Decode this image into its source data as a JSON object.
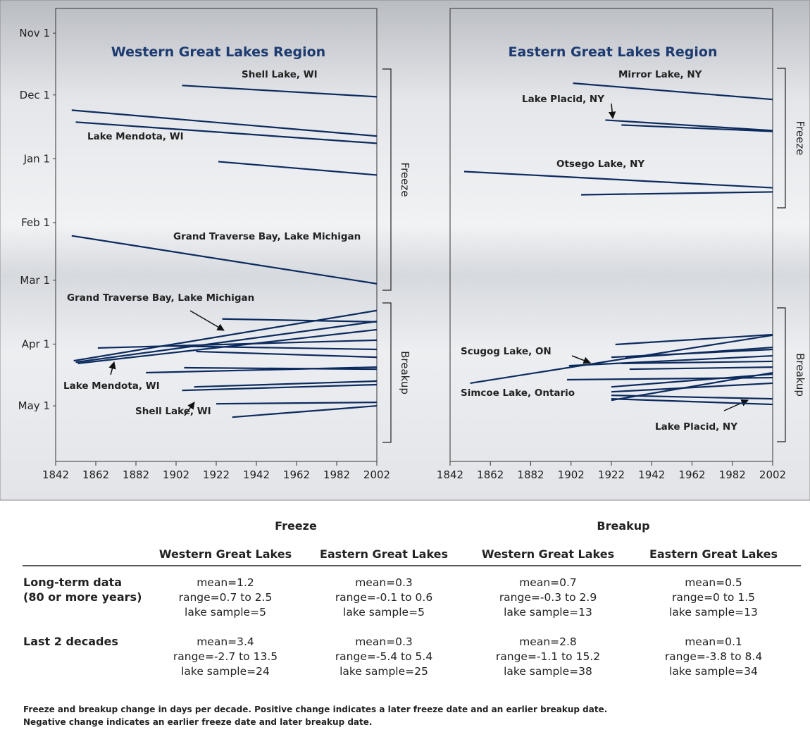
{
  "chart_data": [
    {
      "type": "line",
      "title": "Western Great Lakes Region",
      "color": "#0b2a5e",
      "xlim": [
        1842,
        2002
      ],
      "xticks": [
        1842,
        1862,
        1882,
        1902,
        1922,
        1942,
        1962,
        1982,
        2002
      ],
      "ylim": [
        208,
        -12
      ],
      "yticks": [
        {
          "value": 0,
          "label": "Nov 1"
        },
        {
          "value": 30,
          "label": "Dec 1"
        },
        {
          "value": 61,
          "label": "Jan 1"
        },
        {
          "value": 92,
          "label": "Feb 1"
        },
        {
          "value": 120,
          "label": "Mar 1"
        },
        {
          "value": 151,
          "label": "Apr 1"
        },
        {
          "value": 181,
          "label": "May 1"
        }
      ],
      "bracket_labels": [
        "Freeze",
        "Breakup"
      ],
      "annotations": [
        "Shell Lake, WI",
        "Lake Mendota, WI",
        "Grand Traverse Bay, Lake Michigan",
        "Grand Traverse Bay, Lake Michigan",
        "Lake Mendota, WI",
        "Shell Lake, WI"
      ],
      "series": [
        {
          "x": [
            1905,
            2002
          ],
          "values": [
            25.4,
            30.9
          ]
        },
        {
          "x": [
            1850,
            2002
          ],
          "values": [
            37.4,
            50
          ]
        },
        {
          "x": [
            1852,
            2002
          ],
          "values": [
            43.2,
            53.5
          ]
        },
        {
          "x": [
            1923,
            2002
          ],
          "values": [
            62.4,
            68.9
          ]
        },
        {
          "x": [
            1850,
            2002
          ],
          "values": [
            98.4,
            121.7
          ]
        },
        {
          "x": [
            1851,
            2002
          ],
          "values": [
            159.1,
            134.7
          ]
        },
        {
          "x": [
            1852,
            2002
          ],
          "values": [
            159.8,
            140
          ]
        },
        {
          "x": [
            1853,
            2002
          ],
          "values": [
            160.4,
            144
          ]
        },
        {
          "x": [
            1925,
            2002
          ],
          "values": [
            138.8,
            140.2
          ]
        },
        {
          "x": [
            1863,
            2002
          ],
          "values": [
            152.9,
            149.1
          ]
        },
        {
          "x": [
            1897,
            2002
          ],
          "values": [
            151.9,
            153.6
          ]
        },
        {
          "x": [
            1912,
            2002
          ],
          "values": [
            154.6,
            157.4
          ]
        },
        {
          "x": [
            1887,
            2002
          ],
          "values": [
            164.9,
            162.2
          ]
        },
        {
          "x": [
            1906,
            2002
          ],
          "values": [
            162.5,
            163.2
          ]
        },
        {
          "x": [
            1911,
            2002
          ],
          "values": [
            171.8,
            169
          ]
        },
        {
          "x": [
            1905,
            2002
          ],
          "values": [
            173.5,
            170.7
          ]
        },
        {
          "x": [
            1922,
            2002
          ],
          "values": [
            180,
            179.3
          ]
        },
        {
          "x": [
            1930,
            2002
          ],
          "values": [
            186.5,
            181
          ]
        }
      ]
    },
    {
      "type": "line",
      "title": "Eastern Great Lakes Region",
      "color": "#0b2a5e",
      "xlim": [
        1842,
        2002
      ],
      "xticks": [
        1842,
        1862,
        1882,
        1902,
        1922,
        1942,
        1962,
        1982,
        2002
      ],
      "ylim": [
        208,
        -12
      ],
      "bracket_labels": [
        "Freeze",
        "Breakup"
      ],
      "annotations": [
        "Mirror Lake, NY",
        "Lake Placid, NY",
        "Otsego Lake, NY",
        "Scugog Lake, ON",
        "Simcoe Lake, Ontario",
        "Lake Placid, NY"
      ],
      "series": [
        {
          "x": [
            1903,
            2002
          ],
          "values": [
            24.3,
            32.2
          ]
        },
        {
          "x": [
            1919,
            2002
          ],
          "values": [
            42.2,
            47.3
          ]
        },
        {
          "x": [
            1927,
            2002
          ],
          "values": [
            44.6,
            47.7
          ]
        },
        {
          "x": [
            1849,
            2002
          ],
          "values": [
            67.2,
            75.1
          ]
        },
        {
          "x": [
            1907,
            2002
          ],
          "values": [
            78.5,
            77.1
          ]
        },
        {
          "x": [
            1852,
            2002
          ],
          "values": [
            170,
            146.7
          ]
        },
        {
          "x": [
            1924,
            2002
          ],
          "values": [
            151.2,
            146.4
          ]
        },
        {
          "x": [
            1929,
            2002
          ],
          "values": [
            157.7,
            152.6
          ]
        },
        {
          "x": [
            1922,
            2002
          ],
          "values": [
            157.4,
            153.6
          ]
        },
        {
          "x": [
            1901,
            2002
          ],
          "values": [
            161.5,
            156.7
          ]
        },
        {
          "x": [
            1927,
            2002
          ],
          "values": [
            160.4,
            159.4
          ]
        },
        {
          "x": [
            1931,
            2002
          ],
          "values": [
            163.2,
            162.2
          ]
        },
        {
          "x": [
            1900,
            2002
          ],
          "values": [
            168.3,
            167.3
          ]
        },
        {
          "x": [
            1922,
            2002
          ],
          "values": [
            171.8,
            165.6
          ]
        },
        {
          "x": [
            1922,
            2002
          ],
          "values": [
            174.2,
            170
          ]
        },
        {
          "x": [
            1922,
            2002
          ],
          "values": [
            178.3,
            164.9
          ]
        },
        {
          "x": [
            1922,
            2002
          ],
          "values": [
            177.6,
            180.3
          ]
        },
        {
          "x": [
            1922,
            2002
          ],
          "values": [
            175.9,
            177.6
          ]
        }
      ]
    }
  ],
  "table": {
    "groups": [
      "Freeze",
      "Breakup"
    ],
    "columns": [
      "Western Great Lakes",
      "Eastern Great Lakes",
      "Western Great Lakes",
      "Eastern Great Lakes"
    ],
    "rows": [
      {
        "label": [
          "Long-term data",
          "(80 or more years)"
        ],
        "cells": [
          [
            "mean=1.2",
            "range=0.7 to 2.5",
            "lake sample=5"
          ],
          [
            "mean=0.3",
            "range=-0.1 to 0.6",
            "lake sample=5"
          ],
          [
            "mean=0.7",
            "range=-0.3 to 2.9",
            "lake sample=13"
          ],
          [
            "mean=0.5",
            "range=0 to 1.5",
            "lake sample=13"
          ]
        ]
      },
      {
        "label": [
          "Last 2 decades"
        ],
        "cells": [
          [
            "mean=3.4",
            "range=-2.7 to 13.5",
            "lake sample=24"
          ],
          [
            "mean=0.3",
            "range=-5.4 to 5.4",
            "lake sample=25"
          ],
          [
            "mean=2.8",
            "range=-1.1 to 15.2",
            "lake sample=38"
          ],
          [
            "mean=0.1",
            "range=-3.8 to 8.4",
            "lake sample=34"
          ]
        ]
      }
    ]
  },
  "footnote": [
    "Freeze and breakup change in days per decade. Positive change indicates a later freeze date and an earlier breakup date.",
    "Negative change indicates an earlier freeze date and later breakup date."
  ]
}
